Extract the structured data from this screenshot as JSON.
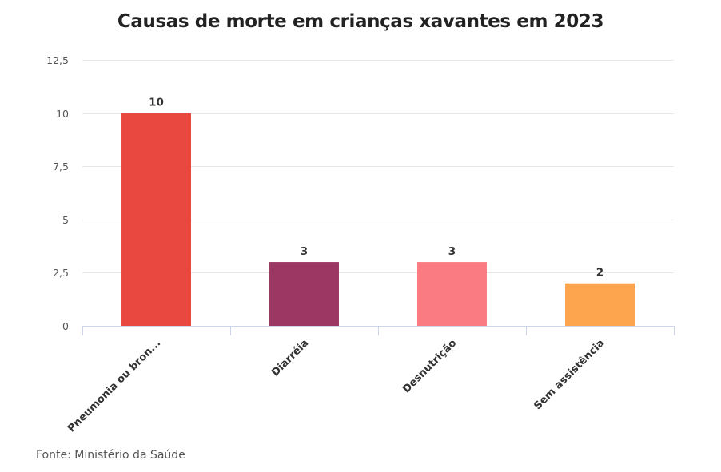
{
  "chart_data": {
    "type": "bar",
    "title": "Causas de morte em crianças xavantes em 2023",
    "xlabel": "",
    "ylabel": "",
    "categories": [
      "Pneumonia ou bron...",
      "Diarréia",
      "Desnutrição",
      "Sem assistência"
    ],
    "values": [
      10,
      3,
      3,
      2
    ],
    "data_labels": [
      "10",
      "3",
      "3",
      "2"
    ],
    "colors": [
      "#e8483f",
      "#9b3762",
      "#fa7b82",
      "#fda44f"
    ],
    "ylim": [
      0,
      12.5
    ],
    "yticks": [
      0,
      2.5,
      5,
      7.5,
      10,
      12.5
    ],
    "ytick_labels": [
      "0",
      "2,5",
      "5",
      "7,5",
      "10",
      "12,5"
    ],
    "grid": true,
    "legend": "none",
    "source": "Fonte: Ministério da Saúde"
  }
}
